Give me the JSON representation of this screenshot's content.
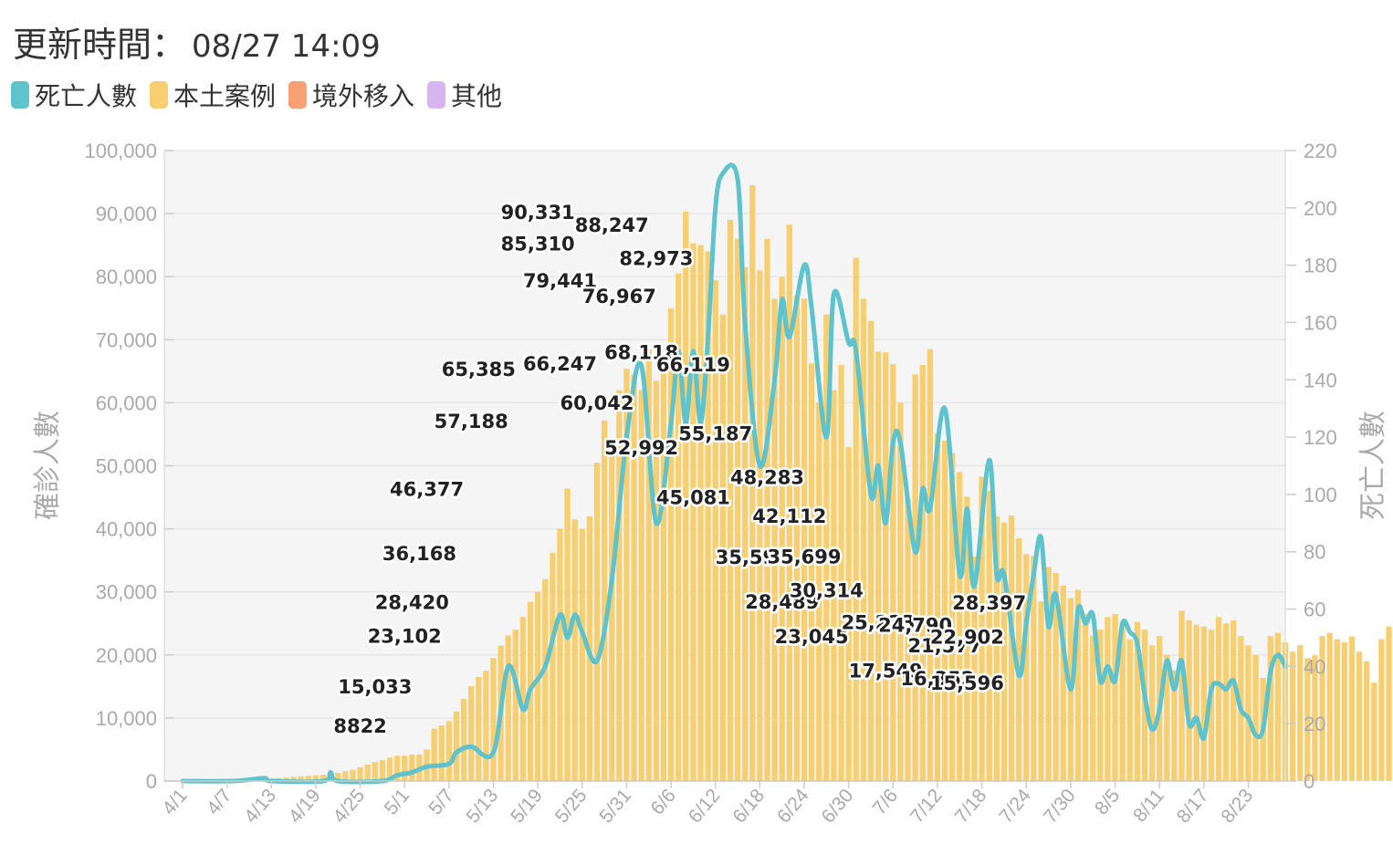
{
  "header": {
    "title": "更新時間：",
    "time": "08/27 14:09"
  },
  "legend": [
    {
      "label": "死亡人數",
      "color": "#5fc3cd",
      "icon": "swatch"
    },
    {
      "label": "本土案例",
      "color": "#f7cf70",
      "icon": "swatch"
    },
    {
      "label": "境外移入",
      "color": "#f7a074",
      "icon": "swatch"
    },
    {
      "label": "其他",
      "color": "#d8b4f0",
      "icon": "swatch"
    }
  ],
  "chart_data": {
    "type": "bar",
    "title": "",
    "ylabel_left": "確診人數",
    "ylabel_right": "死亡人數",
    "ylim_left": [
      0,
      100000
    ],
    "ylim_right": [
      0,
      220
    ],
    "yticks_left": [
      "0",
      "10,000",
      "20,000",
      "30,000",
      "40,000",
      "50,000",
      "60,000",
      "70,000",
      "80,000",
      "90,000",
      "100,000"
    ],
    "yticks_right": [
      "0",
      "20",
      "40",
      "60",
      "80",
      "100",
      "120",
      "140",
      "160",
      "180",
      "200",
      "220"
    ],
    "xticks": [
      "4/1",
      "4/7",
      "4/13",
      "4/19",
      "4/25",
      "5/1",
      "5/7",
      "5/13",
      "5/19",
      "5/25",
      "5/31",
      "6/6",
      "6/12",
      "6/18",
      "6/24",
      "6/30",
      "7/6",
      "7/12",
      "7/18",
      "7/24",
      "7/30",
      "8/5",
      "8/11",
      "8/17",
      "8/23"
    ],
    "grid": true,
    "legend_position": "top-left",
    "colors": {
      "cases": "#f7cf70",
      "deaths": "#5fc3cd"
    },
    "series": [
      {
        "name": "本土案例",
        "type": "bar",
        "x_start": "4/1",
        "values": [
          100,
          100,
          100,
          100,
          150,
          150,
          200,
          200,
          250,
          250,
          300,
          350,
          400,
          450,
          550,
          650,
          750,
          800,
          900,
          1000,
          1100,
          1300,
          1600,
          1800,
          2200,
          2600,
          3000,
          3300,
          3700,
          4000,
          4000,
          4200,
          4200,
          5000,
          8300,
          8822,
          9500,
          11000,
          13000,
          15033,
          16500,
          17500,
          19500,
          21500,
          23102,
          24000,
          26000,
          28420,
          30000,
          32000,
          36168,
          40000,
          46377,
          41500,
          40000,
          42000,
          50500,
          57188,
          52000,
          62000,
          65385,
          64500,
          62000,
          68500,
          63500,
          65500,
          75000,
          80500,
          90331,
          85310,
          85000,
          84000,
          79441,
          74000,
          89000,
          86000,
          81500,
          94500,
          81000,
          86000,
          76500,
          80000,
          88247,
          76967,
          76500,
          66247,
          60042,
          74000,
          62000,
          66000,
          52992,
          82973,
          76500,
          73000,
          68118,
          68000,
          66119,
          60000,
          44800,
          64500,
          66000,
          68500,
          55187,
          54000,
          52000,
          49000,
          45081,
          35596,
          48283,
          46000,
          42000,
          41000,
          42112,
          38500,
          36000,
          35699,
          28489,
          34000,
          33000,
          31000,
          29000,
          30314,
          26500,
          23045,
          24000,
          26000,
          26500,
          25000,
          22500,
          25223,
          24000,
          21500,
          23000,
          20000,
          17549,
          27000,
          25500,
          24790,
          24500,
          24000,
          26000,
          25000,
          25500,
          23000,
          21500,
          20000,
          16352,
          23000,
          23500,
          22000,
          20500,
          21577,
          19500,
          20000,
          23000,
          23500,
          22500,
          22000,
          22902,
          20500,
          19000,
          15596,
          22500,
          24500,
          23500,
          22500,
          22000,
          22000,
          22500,
          21000,
          23000,
          28397,
          27000,
          26500,
          26500
        ]
      },
      {
        "name": "死亡人數",
        "type": "line",
        "axis": "right",
        "points": [
          {
            "x": "4/1",
            "y": 0
          },
          {
            "x": "4/8",
            "y": 0
          },
          {
            "x": "4/12",
            "y": 1
          },
          {
            "x": "4/13",
            "y": 0
          },
          {
            "x": "4/20",
            "y": 0
          },
          {
            "x": "4/21",
            "y": 3
          },
          {
            "x": "4/22",
            "y": 0
          },
          {
            "x": "4/28",
            "y": 0
          },
          {
            "x": "4/30",
            "y": 2
          },
          {
            "x": "5/2",
            "y": 3
          },
          {
            "x": "5/4",
            "y": 5
          },
          {
            "x": "5/7",
            "y": 6
          },
          {
            "x": "5/8",
            "y": 10
          },
          {
            "x": "5/10",
            "y": 12
          },
          {
            "x": "5/13",
            "y": 10
          },
          {
            "x": "5/15",
            "y": 40
          },
          {
            "x": "5/17",
            "y": 25
          },
          {
            "x": "5/18",
            "y": 32
          },
          {
            "x": "5/20",
            "y": 40
          },
          {
            "x": "5/22",
            "y": 58
          },
          {
            "x": "5/23",
            "y": 50
          },
          {
            "x": "5/24",
            "y": 58
          },
          {
            "x": "5/25",
            "y": 52
          },
          {
            "x": "5/27",
            "y": 42
          },
          {
            "x": "5/29",
            "y": 70
          },
          {
            "x": "5/31",
            "y": 120
          },
          {
            "x": "6/2",
            "y": 145
          },
          {
            "x": "6/4",
            "y": 90
          },
          {
            "x": "6/6",
            "y": 125
          },
          {
            "x": "6/7",
            "y": 150
          },
          {
            "x": "6/8",
            "y": 125
          },
          {
            "x": "6/9",
            "y": 150
          },
          {
            "x": "6/10",
            "y": 125
          },
          {
            "x": "6/11",
            "y": 155
          },
          {
            "x": "6/12",
            "y": 200
          },
          {
            "x": "6/13",
            "y": 212
          },
          {
            "x": "6/15",
            "y": 210
          },
          {
            "x": "6/16",
            "y": 160
          },
          {
            "x": "6/18",
            "y": 110
          },
          {
            "x": "6/20",
            "y": 140
          },
          {
            "x": "6/21",
            "y": 168
          },
          {
            "x": "6/22",
            "y": 155
          },
          {
            "x": "6/24",
            "y": 180
          },
          {
            "x": "6/25",
            "y": 165
          },
          {
            "x": "6/27",
            "y": 120
          },
          {
            "x": "6/28",
            "y": 170
          },
          {
            "x": "6/30",
            "y": 153
          },
          {
            "x": "7/1",
            "y": 150
          },
          {
            "x": "7/3",
            "y": 100
          },
          {
            "x": "7/4",
            "y": 110
          },
          {
            "x": "7/5",
            "y": 90
          },
          {
            "x": "7/6",
            "y": 118
          },
          {
            "x": "7/7",
            "y": 118
          },
          {
            "x": "7/9",
            "y": 80
          },
          {
            "x": "7/10",
            "y": 102
          },
          {
            "x": "7/11",
            "y": 95
          },
          {
            "x": "7/13",
            "y": 130
          },
          {
            "x": "7/15",
            "y": 72
          },
          {
            "x": "7/16",
            "y": 95
          },
          {
            "x": "7/17",
            "y": 68
          },
          {
            "x": "7/19",
            "y": 112
          },
          {
            "x": "7/20",
            "y": 72
          },
          {
            "x": "7/21",
            "y": 72
          },
          {
            "x": "7/23",
            "y": 37
          },
          {
            "x": "7/24",
            "y": 55
          },
          {
            "x": "7/25",
            "y": 72
          },
          {
            "x": "7/26",
            "y": 85
          },
          {
            "x": "7/27",
            "y": 54
          },
          {
            "x": "7/28",
            "y": 65
          },
          {
            "x": "7/30",
            "y": 32
          },
          {
            "x": "7/31",
            "y": 60
          },
          {
            "x": "8/1",
            "y": 55
          },
          {
            "x": "8/2",
            "y": 58
          },
          {
            "x": "8/3",
            "y": 35
          },
          {
            "x": "8/4",
            "y": 40
          },
          {
            "x": "8/5",
            "y": 35
          },
          {
            "x": "8/6",
            "y": 55
          },
          {
            "x": "8/7",
            "y": 52
          },
          {
            "x": "8/8",
            "y": 48
          },
          {
            "x": "8/9",
            "y": 30
          },
          {
            "x": "8/10",
            "y": 18
          },
          {
            "x": "8/11",
            "y": 25
          },
          {
            "x": "8/12",
            "y": 42
          },
          {
            "x": "8/13",
            "y": 32
          },
          {
            "x": "8/14",
            "y": 42
          },
          {
            "x": "8/15",
            "y": 20
          },
          {
            "x": "8/16",
            "y": 22
          },
          {
            "x": "8/17",
            "y": 15
          },
          {
            "x": "8/18",
            "y": 32
          },
          {
            "x": "8/19",
            "y": 34
          },
          {
            "x": "8/20",
            "y": 32
          },
          {
            "x": "8/21",
            "y": 35
          },
          {
            "x": "8/22",
            "y": 25
          },
          {
            "x": "8/23",
            "y": 22
          },
          {
            "x": "8/24",
            "y": 16
          },
          {
            "x": "8/25",
            "y": 18
          },
          {
            "x": "8/26",
            "y": 38
          },
          {
            "x": "8/27",
            "y": 44
          },
          {
            "x": "8/28",
            "y": 40
          }
        ]
      }
    ],
    "data_labels": [
      {
        "text": "8822",
        "x": "4/25",
        "value": 8822
      },
      {
        "text": "15,033",
        "x": "4/27",
        "value": 15033
      },
      {
        "text": "23,102",
        "x": "5/1",
        "value": 23102
      },
      {
        "text": "28,420",
        "x": "5/2",
        "value": 28420
      },
      {
        "text": "36,168",
        "x": "5/3",
        "value": 36168
      },
      {
        "text": "46,377",
        "x": "5/4",
        "value": 46377
      },
      {
        "text": "57,188",
        "x": "5/10",
        "value": 57188
      },
      {
        "text": "65,385",
        "x": "5/11",
        "value": 65385
      },
      {
        "text": "90,331",
        "x": "5/19",
        "value": 90331
      },
      {
        "text": "85,310",
        "x": "5/19",
        "value": 85310
      },
      {
        "text": "79,441",
        "x": "5/22",
        "value": 79441
      },
      {
        "text": "66,247",
        "x": "5/22",
        "value": 66247
      },
      {
        "text": "60,042",
        "x": "5/27",
        "value": 60042
      },
      {
        "text": "88,247",
        "x": "5/29",
        "value": 88247
      },
      {
        "text": "76,967",
        "x": "5/30",
        "value": 76967
      },
      {
        "text": "68,118",
        "x": "6/2",
        "value": 68118
      },
      {
        "text": "52,992",
        "x": "6/2",
        "value": 52992
      },
      {
        "text": "82,973",
        "x": "6/4",
        "value": 82973
      },
      {
        "text": "66,119",
        "x": "6/9",
        "value": 66119
      },
      {
        "text": "45,081",
        "x": "6/9",
        "value": 45081
      },
      {
        "text": "55,187",
        "x": "6/12",
        "value": 55187
      },
      {
        "text": "35,596",
        "x": "6/17",
        "value": 35596
      },
      {
        "text": "48,283",
        "x": "6/19",
        "value": 48283
      },
      {
        "text": "28,489",
        "x": "6/21",
        "value": 28489
      },
      {
        "text": "42,112",
        "x": "6/22",
        "value": 42112
      },
      {
        "text": "35,699",
        "x": "6/24",
        "value": 35699
      },
      {
        "text": "23,045",
        "x": "6/25",
        "value": 23045
      },
      {
        "text": "30,314",
        "x": "6/27",
        "value": 30314
      },
      {
        "text": "25,223",
        "x": "7/4",
        "value": 25223
      },
      {
        "text": "17,549",
        "x": "7/5",
        "value": 17549
      },
      {
        "text": "24,790",
        "x": "7/9",
        "value": 24790
      },
      {
        "text": "16,352",
        "x": "7/12",
        "value": 16352
      },
      {
        "text": "21,577",
        "x": "7/13",
        "value": 21577
      },
      {
        "text": "22,902",
        "x": "7/16",
        "value": 22902
      },
      {
        "text": "15,596",
        "x": "7/16",
        "value": 15596
      },
      {
        "text": "28,397",
        "x": "7/19",
        "value": 28397
      }
    ]
  }
}
